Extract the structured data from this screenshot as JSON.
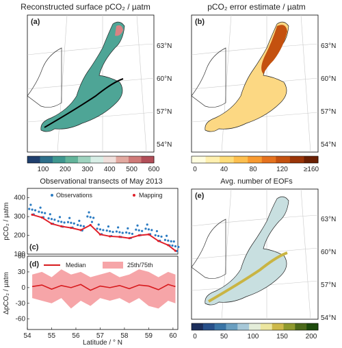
{
  "panels": {
    "a": {
      "label": "(a)",
      "title": "Reconstructed surface pCO₂ / µatm",
      "colorbar": {
        "ticks": [
          "100",
          "200",
          "300",
          "400",
          "500",
          "600"
        ],
        "colors": [
          "#1f3f6e",
          "#2d6f8a",
          "#3f978f",
          "#63b49a",
          "#9fd3bf",
          "#d8eee6",
          "#f0e0dc",
          "#e2a9a0",
          "#cf7a78",
          "#b24e58"
        ]
      }
    },
    "b": {
      "label": "(b)",
      "title": "pCO₂ error estimate / µatm",
      "colorbar": {
        "ticks": [
          "0",
          "40",
          "80",
          "120",
          "≥160"
        ],
        "colors": [
          "#fffde0",
          "#fff0b0",
          "#fedd7a",
          "#fdbf4f",
          "#f89a30",
          "#e5721e",
          "#c4510f",
          "#9a3508",
          "#6a2003"
        ]
      }
    },
    "c": {
      "label": "(c)",
      "title": "Observational transects of May 2013",
      "legend": {
        "observations": "Observations",
        "mapping": "Mapping"
      },
      "ylabel": "pCO₂ / µatm",
      "yticks": [
        "100",
        "200",
        "300",
        "400"
      ],
      "colors": {
        "observations": "#2b7bc2",
        "mapping": "#e0202a"
      }
    },
    "d": {
      "label": "(d)",
      "legend": {
        "median": "Median",
        "iqr": "25th/75th"
      },
      "ylabel": "ΔpCO₂ / µatm",
      "yticks": [
        "60",
        "30",
        "0",
        "-30",
        "-60"
      ],
      "xticks": [
        "54",
        "55",
        "56",
        "57",
        "58",
        "59",
        "60"
      ],
      "xlabel": "Latitude / ° N",
      "colors": {
        "median": "#d7191c",
        "iqr": "#f6a5a8"
      }
    },
    "e": {
      "label": "(e)",
      "title": "Avg. number of EOFs",
      "colorbar": {
        "ticks": [
          "0",
          "50",
          "100",
          "150",
          "200"
        ],
        "colors": [
          "#1c2f5c",
          "#27508a",
          "#3a75a6",
          "#6a9fc0",
          "#a7c8d8",
          "#e4edd9",
          "#ece6a0",
          "#cdb94b",
          "#8f9a2e",
          "#4c6a1a",
          "#1d4a0c"
        ]
      }
    }
  },
  "lat_labels": [
    "63°N",
    "60°N",
    "57°N",
    "54°N"
  ],
  "chart_data": [
    {
      "type": "line",
      "panel": "c",
      "title": "Observational transects of May 2013",
      "xlabel": "Latitude / ° N",
      "ylabel": "pCO₂ / µatm",
      "xlim": [
        54,
        60.2
      ],
      "ylim": [
        100,
        450
      ],
      "series": [
        {
          "name": "Observations",
          "x": [
            54.2,
            54.6,
            55.0,
            55.4,
            55.8,
            56.2,
            56.6,
            57.0,
            57.4,
            57.8,
            58.2,
            58.6,
            59.0,
            59.4,
            59.8,
            60.1
          ],
          "values": [
            315,
            300,
            265,
            250,
            245,
            230,
            275,
            210,
            200,
            195,
            190,
            205,
            210,
            175,
            150,
            120
          ]
        },
        {
          "name": "Mapping",
          "x": [
            54.2,
            54.6,
            55.0,
            55.4,
            55.8,
            56.2,
            56.6,
            57.0,
            57.4,
            57.8,
            58.2,
            58.6,
            59.0,
            59.4,
            59.8,
            60.1
          ],
          "values": [
            310,
            295,
            262,
            248,
            240,
            228,
            255,
            205,
            195,
            192,
            185,
            200,
            205,
            170,
            148,
            118
          ]
        }
      ]
    },
    {
      "type": "line",
      "panel": "d",
      "xlabel": "Latitude / ° N",
      "ylabel": "ΔpCO₂ / µatm",
      "xlim": [
        54,
        60.2
      ],
      "ylim": [
        -80,
        60
      ],
      "series": [
        {
          "name": "Median",
          "x": [
            54.2,
            54.6,
            55.0,
            55.4,
            55.8,
            56.2,
            56.6,
            57.0,
            57.4,
            57.8,
            58.2,
            58.6,
            59.0,
            59.4,
            59.8,
            60.1
          ],
          "values": [
            2,
            5,
            -3,
            4,
            0,
            6,
            -5,
            3,
            0,
            4,
            -2,
            5,
            3,
            -4,
            6,
            2
          ]
        },
        {
          "name": "25th/75th",
          "x": [
            54.2,
            54.6,
            55.0,
            55.4,
            55.8,
            56.2,
            56.6,
            57.0,
            57.4,
            57.8,
            58.2,
            58.6,
            59.0,
            59.4,
            59.8,
            60.1
          ],
          "lower": [
            -20,
            -25,
            -30,
            -20,
            -40,
            -25,
            -35,
            -20,
            -25,
            -20,
            -30,
            -20,
            -35,
            -40,
            -25,
            -30
          ],
          "upper": [
            25,
            30,
            20,
            35,
            25,
            30,
            20,
            25,
            30,
            20,
            25,
            35,
            30,
            20,
            30,
            25
          ]
        }
      ]
    }
  ]
}
